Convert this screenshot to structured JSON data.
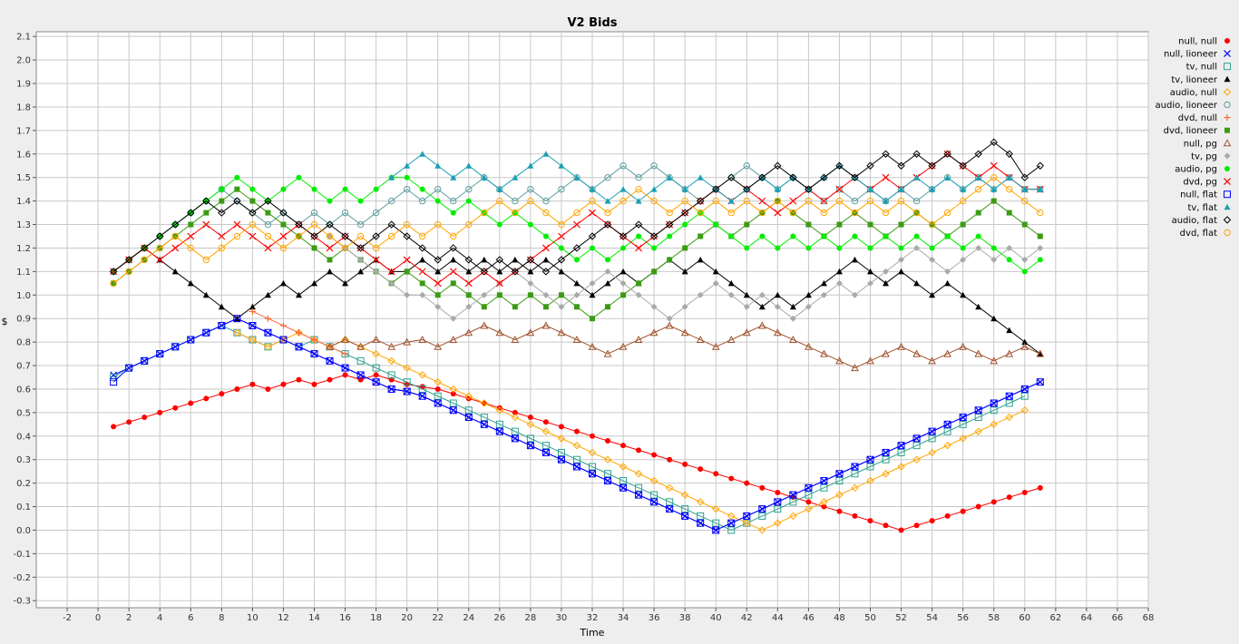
{
  "chart_data": {
    "type": "line",
    "title": "V2 Bids",
    "xlabel": "Time",
    "ylabel": "$",
    "xlim": [
      -4,
      68
    ],
    "ylim": [
      -0.33,
      2.12
    ],
    "xticks": [
      -2,
      0,
      2,
      4,
      6,
      8,
      10,
      12,
      14,
      16,
      18,
      20,
      22,
      24,
      26,
      28,
      30,
      32,
      34,
      36,
      38,
      40,
      42,
      44,
      46,
      48,
      50,
      52,
      54,
      56,
      58,
      60,
      62,
      64,
      66,
      68
    ],
    "yticks": [
      -0.3,
      -0.2,
      -0.1,
      0.0,
      0.1,
      0.2,
      0.3,
      0.4,
      0.5,
      0.6,
      0.7,
      0.8,
      0.9,
      1.0,
      1.1,
      1.2,
      1.3,
      1.4,
      1.5,
      1.6,
      1.7,
      1.8,
      1.9,
      2.0,
      2.1
    ],
    "grid": true,
    "legend_position": "right",
    "series": [
      {
        "name": "null, null",
        "color": "#ff0000",
        "marker": "circle-filled",
        "x_start": 1,
        "values": [
          0.44,
          0.46,
          0.48,
          0.5,
          0.52,
          0.54,
          0.56,
          0.58,
          0.6,
          0.62,
          0.6,
          0.62,
          0.64,
          0.62,
          0.64,
          0.66,
          0.64,
          0.66,
          0.64,
          0.62,
          0.61,
          0.6,
          0.58,
          0.56,
          0.54,
          0.52,
          0.5,
          0.48,
          0.46,
          0.44,
          0.42,
          0.4,
          0.38,
          0.36,
          0.34,
          0.32,
          0.3,
          0.28,
          0.26,
          0.24,
          0.22,
          0.2,
          0.18,
          0.16,
          0.14,
          0.12,
          0.1,
          0.08,
          0.06,
          0.04,
          0.02,
          0.0,
          0.02,
          0.04,
          0.06,
          0.08,
          0.1,
          0.12,
          0.14,
          0.16,
          0.18
        ]
      },
      {
        "name": "null, lioneer",
        "color": "#0000ff",
        "marker": "x",
        "x_start": 1,
        "values": [
          0.66,
          0.69,
          0.72,
          0.75,
          0.78,
          0.81,
          0.84,
          0.87,
          0.9,
          0.87,
          0.84,
          0.81,
          0.78,
          0.75,
          0.72,
          0.69,
          0.66,
          0.63,
          0.6,
          0.59,
          0.57,
          0.54,
          0.51,
          0.48,
          0.45,
          0.42,
          0.39,
          0.36,
          0.33,
          0.3,
          0.27,
          0.24,
          0.21,
          0.18,
          0.15,
          0.12,
          0.09,
          0.06,
          0.03,
          0.0,
          0.03,
          0.06,
          0.09,
          0.12,
          0.15,
          0.18,
          0.21,
          0.24,
          0.27,
          0.3,
          0.33,
          0.36,
          0.39,
          0.42,
          0.45,
          0.48,
          0.51,
          0.54,
          0.57,
          0.6,
          0.63
        ]
      },
      {
        "name": "tv, null",
        "color": "#2ea18f",
        "marker": "square-open",
        "x_start": 1,
        "values": [
          0.65,
          0.69,
          0.72,
          0.75,
          0.78,
          0.81,
          0.84,
          0.87,
          0.84,
          0.81,
          0.78,
          0.81,
          0.78,
          0.81,
          0.78,
          0.75,
          0.72,
          0.69,
          0.66,
          0.63,
          0.6,
          0.57,
          0.54,
          0.51,
          0.48,
          0.45,
          0.42,
          0.39,
          0.36,
          0.33,
          0.3,
          0.27,
          0.24,
          0.21,
          0.18,
          0.15,
          0.12,
          0.09,
          0.06,
          0.03,
          0.0,
          0.03,
          0.06,
          0.09,
          0.12,
          0.15,
          0.18,
          0.21,
          0.24,
          0.27,
          0.3,
          0.33,
          0.36,
          0.39,
          0.42,
          0.45,
          0.48,
          0.51,
          0.54,
          0.57
        ]
      },
      {
        "name": "tv, lioneer",
        "color": "#000000",
        "marker": "triangle-filled",
        "x_start": 1,
        "values": [
          1.1,
          1.15,
          1.2,
          1.15,
          1.1,
          1.05,
          1.0,
          0.95,
          0.9,
          0.95,
          1.0,
          1.05,
          1.0,
          1.05,
          1.1,
          1.05,
          1.1,
          1.15,
          1.1,
          1.1,
          1.15,
          1.1,
          1.15,
          1.1,
          1.15,
          1.1,
          1.15,
          1.1,
          1.15,
          1.1,
          1.05,
          1.0,
          1.05,
          1.1,
          1.05,
          1.1,
          1.15,
          1.1,
          1.15,
          1.1,
          1.05,
          1.0,
          0.95,
          1.0,
          0.95,
          1.0,
          1.05,
          1.1,
          1.15,
          1.1,
          1.05,
          1.1,
          1.05,
          1.0,
          1.05,
          1.0,
          0.95,
          0.9,
          0.85,
          0.8,
          0.75
        ]
      },
      {
        "name": "audio, null",
        "color": "#ffa500",
        "marker": "diamond-open",
        "x_start": 9,
        "values": [
          0.84,
          0.81,
          0.78,
          0.81,
          0.84,
          0.81,
          0.78,
          0.81,
          0.78,
          0.75,
          0.72,
          0.69,
          0.66,
          0.63,
          0.6,
          0.57,
          0.54,
          0.51,
          0.48,
          0.45,
          0.42,
          0.39,
          0.36,
          0.33,
          0.3,
          0.27,
          0.24,
          0.21,
          0.18,
          0.15,
          0.12,
          0.09,
          0.06,
          0.03,
          0.0,
          0.03,
          0.06,
          0.09,
          0.12,
          0.15,
          0.18,
          0.21,
          0.24,
          0.27,
          0.3,
          0.33,
          0.36,
          0.39,
          0.42,
          0.45,
          0.48,
          0.51
        ]
      },
      {
        "name": "audio, lioneer",
        "color": "#5f9ea0",
        "marker": "circle-open",
        "x_start": 1,
        "values": [
          1.1,
          1.15,
          1.2,
          1.25,
          1.3,
          1.35,
          1.4,
          1.45,
          1.4,
          1.35,
          1.3,
          1.35,
          1.3,
          1.35,
          1.3,
          1.35,
          1.3,
          1.35,
          1.4,
          1.45,
          1.4,
          1.45,
          1.4,
          1.45,
          1.5,
          1.45,
          1.4,
          1.45,
          1.4,
          1.45,
          1.5,
          1.45,
          1.5,
          1.55,
          1.5,
          1.55,
          1.5,
          1.45,
          1.4,
          1.45,
          1.5,
          1.55,
          1.5,
          1.45,
          1.5,
          1.45,
          1.4,
          1.45,
          1.4,
          1.45,
          1.4,
          1.45,
          1.4,
          1.45,
          1.5,
          1.45,
          1.5,
          1.45,
          1.5,
          1.45,
          1.45
        ]
      },
      {
        "name": "dvd, null",
        "color": "#ff6633",
        "marker": "plus",
        "x_start": 10,
        "values": [
          0.93,
          0.9,
          0.87,
          0.84,
          0.81,
          0.78,
          0.75
        ]
      },
      {
        "name": "dvd, lioneer",
        "color": "#3c9b14",
        "marker": "square-filled",
        "x_start": 1,
        "values": [
          1.05,
          1.1,
          1.15,
          1.2,
          1.25,
          1.3,
          1.35,
          1.4,
          1.45,
          1.4,
          1.35,
          1.3,
          1.25,
          1.2,
          1.15,
          1.2,
          1.15,
          1.1,
          1.05,
          1.1,
          1.05,
          1.0,
          1.05,
          1.0,
          0.95,
          1.0,
          0.95,
          1.0,
          0.95,
          1.0,
          0.95,
          0.9,
          0.95,
          1.0,
          1.05,
          1.1,
          1.15,
          1.2,
          1.25,
          1.3,
          1.25,
          1.3,
          1.35,
          1.4,
          1.35,
          1.3,
          1.25,
          1.3,
          1.35,
          1.3,
          1.25,
          1.3,
          1.35,
          1.3,
          1.25,
          1.3,
          1.35,
          1.4,
          1.35,
          1.3,
          1.25
        ]
      },
      {
        "name": "null, pg",
        "color": "#a0522d",
        "marker": "triangle-open",
        "x_start": 15,
        "values": [
          0.78,
          0.81,
          0.78,
          0.81,
          0.78,
          0.8,
          0.81,
          0.78,
          0.81,
          0.84,
          0.87,
          0.84,
          0.81,
          0.84,
          0.87,
          0.84,
          0.81,
          0.78,
          0.75,
          0.78,
          0.81,
          0.84,
          0.87,
          0.84,
          0.81,
          0.78,
          0.81,
          0.84,
          0.87,
          0.84,
          0.81,
          0.78,
          0.75,
          0.72,
          0.69,
          0.72,
          0.75,
          0.78,
          0.75,
          0.72,
          0.75,
          0.78,
          0.75,
          0.72,
          0.75,
          0.78,
          0.75
        ]
      },
      {
        "name": "tv, pg",
        "color": "#a9a9a9",
        "marker": "diamond-filled",
        "x_start": 15,
        "values": [
          1.25,
          1.2,
          1.15,
          1.1,
          1.05,
          1.0,
          1.0,
          0.95,
          0.9,
          0.95,
          1.0,
          1.05,
          1.1,
          1.05,
          1.0,
          0.95,
          1.0,
          1.05,
          1.1,
          1.05,
          1.0,
          0.95,
          0.9,
          0.95,
          1.0,
          1.05,
          1.0,
          0.95,
          1.0,
          0.95,
          0.9,
          0.95,
          1.0,
          1.05,
          1.0,
          1.05,
          1.1,
          1.15,
          1.2,
          1.15,
          1.1,
          1.15,
          1.2,
          1.15,
          1.2,
          1.15,
          1.2
        ]
      },
      {
        "name": "audio, pg",
        "color": "#00ee00",
        "marker": "circle-filled",
        "x_start": 1,
        "values": [
          1.1,
          1.15,
          1.2,
          1.25,
          1.3,
          1.35,
          1.4,
          1.45,
          1.5,
          1.45,
          1.4,
          1.45,
          1.5,
          1.45,
          1.4,
          1.45,
          1.4,
          1.45,
          1.5,
          1.5,
          1.45,
          1.4,
          1.35,
          1.4,
          1.35,
          1.3,
          1.35,
          1.3,
          1.25,
          1.2,
          1.15,
          1.2,
          1.15,
          1.2,
          1.25,
          1.2,
          1.25,
          1.3,
          1.35,
          1.3,
          1.25,
          1.2,
          1.25,
          1.2,
          1.25,
          1.2,
          1.25,
          1.2,
          1.25,
          1.2,
          1.25,
          1.2,
          1.25,
          1.2,
          1.25,
          1.2,
          1.25,
          1.2,
          1.15,
          1.1,
          1.15
        ]
      },
      {
        "name": "dvd, pg",
        "color": "#ff0000",
        "marker": "x",
        "x_start": 1,
        "values": [
          1.1,
          1.15,
          1.2,
          1.15,
          1.2,
          1.25,
          1.3,
          1.25,
          1.3,
          1.25,
          1.2,
          1.25,
          1.3,
          1.25,
          1.2,
          1.25,
          1.2,
          1.15,
          1.1,
          1.15,
          1.1,
          1.05,
          1.1,
          1.05,
          1.1,
          1.05,
          1.1,
          1.15,
          1.2,
          1.25,
          1.3,
          1.35,
          1.3,
          1.25,
          1.2,
          1.25,
          1.3,
          1.35,
          1.4,
          1.45,
          1.4,
          1.45,
          1.4,
          1.35,
          1.4,
          1.45,
          1.4,
          1.45,
          1.5,
          1.45,
          1.5,
          1.45,
          1.5,
          1.55,
          1.6,
          1.55,
          1.5,
          1.55,
          1.5,
          1.45,
          1.45
        ]
      },
      {
        "name": "null, flat",
        "color": "#0000ff",
        "marker": "square-open",
        "x_start": 1,
        "values": [
          0.63,
          0.69,
          0.72,
          0.75,
          0.78,
          0.81,
          0.84,
          0.87,
          0.9,
          0.87,
          0.84,
          0.81,
          0.78,
          0.75,
          0.72,
          0.69,
          0.66,
          0.63,
          0.6,
          0.59,
          0.57,
          0.54,
          0.51,
          0.48,
          0.45,
          0.42,
          0.39,
          0.36,
          0.33,
          0.3,
          0.27,
          0.24,
          0.21,
          0.18,
          0.15,
          0.12,
          0.09,
          0.06,
          0.03,
          0.0,
          0.03,
          0.06,
          0.09,
          0.12,
          0.15,
          0.18,
          0.21,
          0.24,
          0.27,
          0.3,
          0.33,
          0.36,
          0.39,
          0.42,
          0.45,
          0.48,
          0.51,
          0.54,
          0.57,
          0.6,
          0.63
        ]
      },
      {
        "name": "tv, flat",
        "color": "#1aa0b4",
        "marker": "triangle-filled",
        "x_start": 19,
        "values": [
          1.5,
          1.55,
          1.6,
          1.55,
          1.5,
          1.55,
          1.5,
          1.45,
          1.5,
          1.55,
          1.6,
          1.55,
          1.5,
          1.45,
          1.4,
          1.45,
          1.4,
          1.45,
          1.5,
          1.45,
          1.5,
          1.45,
          1.4,
          1.45,
          1.5,
          1.45,
          1.5,
          1.45,
          1.5,
          1.55,
          1.5,
          1.45,
          1.4,
          1.45,
          1.5,
          1.45,
          1.5,
          1.45,
          1.5,
          1.45,
          1.5,
          1.45,
          1.45
        ]
      },
      {
        "name": "audio, flat",
        "color": "#000000",
        "marker": "diamond-open",
        "x_start": 1,
        "values": [
          1.1,
          1.15,
          1.2,
          1.25,
          1.3,
          1.35,
          1.4,
          1.35,
          1.4,
          1.35,
          1.4,
          1.35,
          1.3,
          1.25,
          1.3,
          1.25,
          1.2,
          1.25,
          1.3,
          1.25,
          1.2,
          1.15,
          1.2,
          1.15,
          1.1,
          1.15,
          1.1,
          1.15,
          1.1,
          1.15,
          1.2,
          1.25,
          1.3,
          1.25,
          1.3,
          1.25,
          1.3,
          1.35,
          1.4,
          1.45,
          1.5,
          1.45,
          1.5,
          1.55,
          1.5,
          1.45,
          1.5,
          1.55,
          1.5,
          1.55,
          1.6,
          1.55,
          1.6,
          1.55,
          1.6,
          1.55,
          1.6,
          1.65,
          1.6,
          1.5,
          1.55
        ]
      },
      {
        "name": "dvd, flat",
        "color": "#ffa500",
        "marker": "circle-open",
        "x_start": 1,
        "values": [
          1.05,
          1.1,
          1.15,
          1.2,
          1.25,
          1.2,
          1.15,
          1.2,
          1.25,
          1.3,
          1.25,
          1.2,
          1.25,
          1.3,
          1.25,
          1.2,
          1.25,
          1.2,
          1.25,
          1.3,
          1.25,
          1.3,
          1.25,
          1.3,
          1.35,
          1.4,
          1.35,
          1.4,
          1.35,
          1.3,
          1.35,
          1.4,
          1.35,
          1.4,
          1.45,
          1.4,
          1.35,
          1.4,
          1.35,
          1.4,
          1.35,
          1.4,
          1.35,
          1.4,
          1.35,
          1.4,
          1.35,
          1.4,
          1.35,
          1.4,
          1.35,
          1.4,
          1.35,
          1.3,
          1.35,
          1.4,
          1.45,
          1.5,
          1.45,
          1.4,
          1.35
        ]
      }
    ]
  }
}
